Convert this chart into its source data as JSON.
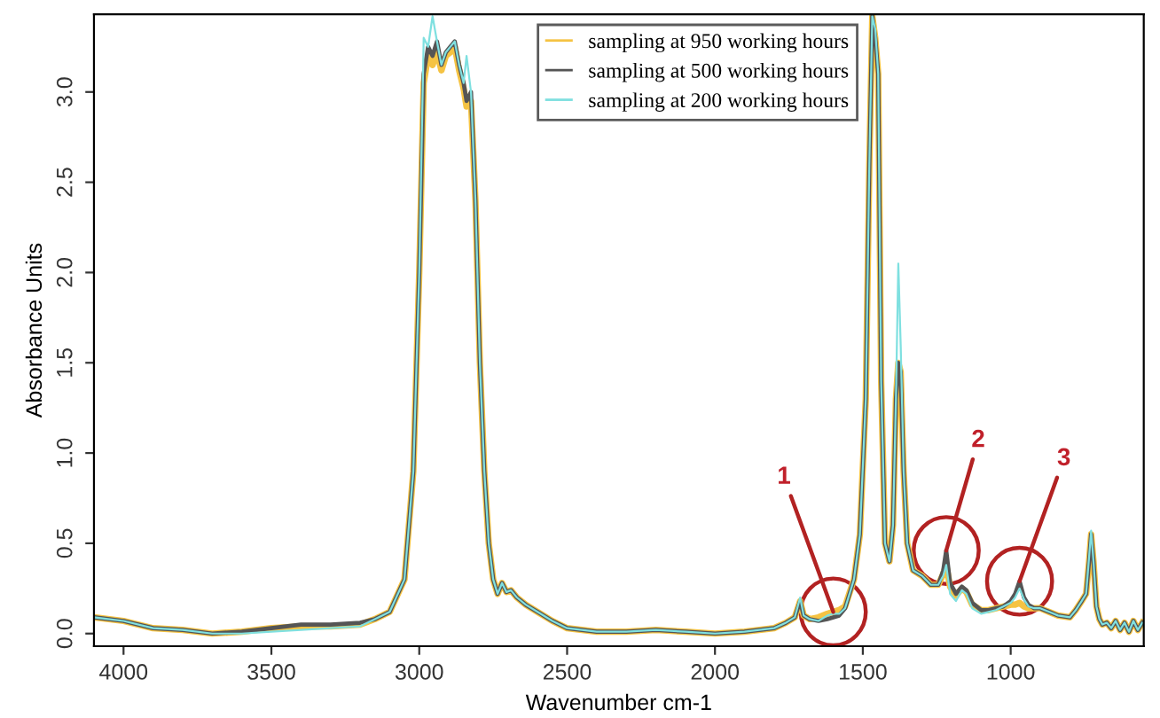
{
  "chart_data": {
    "type": "line",
    "xlabel": "Wavenumber cm-1",
    "ylabel": "Absorbance Units",
    "x": [
      4100,
      4000,
      3900,
      3800,
      3700,
      3600,
      3500,
      3400,
      3300,
      3200,
      3150,
      3100,
      3050,
      3020,
      3000,
      2985,
      2970,
      2955,
      2940,
      2925,
      2910,
      2895,
      2880,
      2865,
      2850,
      2840,
      2825,
      2810,
      2795,
      2780,
      2765,
      2750,
      2735,
      2720,
      2705,
      2690,
      2670,
      2640,
      2600,
      2550,
      2500,
      2400,
      2300,
      2200,
      2100,
      2000,
      1900,
      1800,
      1760,
      1730,
      1712,
      1700,
      1680,
      1650,
      1620,
      1600,
      1580,
      1560,
      1530,
      1510,
      1490,
      1478,
      1468,
      1458,
      1448,
      1438,
      1425,
      1410,
      1398,
      1388,
      1380,
      1372,
      1362,
      1350,
      1330,
      1300,
      1270,
      1245,
      1228,
      1218,
      1205,
      1185,
      1165,
      1150,
      1130,
      1100,
      1075,
      1050,
      1025,
      1000,
      985,
      970,
      955,
      940,
      920,
      900,
      870,
      840,
      800,
      780,
      760,
      745,
      735,
      728,
      720,
      710,
      700,
      690,
      675,
      660,
      645,
      630,
      615,
      600,
      585,
      570,
      555
    ],
    "series": [
      {
        "name": "sampling at 950 working hours",
        "color": "#f5c343",
        "values": [
          0.09,
          0.07,
          0.03,
          0.02,
          0.0,
          0.01,
          0.03,
          0.04,
          0.04,
          0.05,
          0.08,
          0.12,
          0.3,
          0.9,
          2.0,
          3.05,
          3.2,
          3.15,
          3.22,
          3.12,
          3.2,
          3.22,
          3.25,
          3.12,
          3.02,
          2.92,
          2.95,
          2.4,
          1.5,
          0.9,
          0.5,
          0.3,
          0.22,
          0.28,
          0.23,
          0.24,
          0.2,
          0.16,
          0.12,
          0.07,
          0.03,
          0.01,
          0.01,
          0.02,
          0.01,
          0.0,
          0.01,
          0.03,
          0.06,
          0.09,
          0.18,
          0.1,
          0.08,
          0.09,
          0.11,
          0.12,
          0.13,
          0.15,
          0.3,
          0.55,
          1.3,
          2.6,
          3.42,
          3.3,
          3.1,
          1.4,
          0.5,
          0.4,
          0.6,
          1.3,
          1.5,
          1.45,
          0.9,
          0.5,
          0.35,
          0.32,
          0.27,
          0.27,
          0.33,
          0.38,
          0.26,
          0.21,
          0.25,
          0.23,
          0.16,
          0.13,
          0.13,
          0.14,
          0.15,
          0.16,
          0.16,
          0.17,
          0.15,
          0.14,
          0.14,
          0.14,
          0.12,
          0.1,
          0.09,
          0.13,
          0.18,
          0.22,
          0.4,
          0.55,
          0.4,
          0.15,
          0.08,
          0.05,
          0.06,
          0.03,
          0.07,
          0.02,
          0.06,
          0.01,
          0.07,
          0.02,
          0.06
        ]
      },
      {
        "name": "sampling at 500 working hours",
        "color": "#555555",
        "values": [
          0.09,
          0.07,
          0.03,
          0.02,
          0.0,
          0.01,
          0.03,
          0.05,
          0.05,
          0.06,
          0.08,
          0.12,
          0.3,
          0.9,
          2.0,
          3.1,
          3.25,
          3.2,
          3.28,
          3.15,
          3.22,
          3.25,
          3.28,
          3.15,
          3.05,
          2.95,
          3.0,
          2.4,
          1.5,
          0.9,
          0.5,
          0.3,
          0.22,
          0.28,
          0.23,
          0.24,
          0.2,
          0.16,
          0.12,
          0.07,
          0.03,
          0.01,
          0.01,
          0.02,
          0.01,
          0.0,
          0.01,
          0.03,
          0.06,
          0.09,
          0.18,
          0.1,
          0.08,
          0.07,
          0.08,
          0.09,
          0.1,
          0.14,
          0.3,
          0.55,
          1.3,
          2.6,
          3.42,
          3.3,
          3.1,
          1.4,
          0.5,
          0.4,
          0.6,
          1.3,
          1.5,
          1.45,
          0.9,
          0.5,
          0.35,
          0.32,
          0.27,
          0.27,
          0.35,
          0.46,
          0.28,
          0.22,
          0.26,
          0.24,
          0.17,
          0.13,
          0.13,
          0.14,
          0.15,
          0.18,
          0.22,
          0.29,
          0.2,
          0.16,
          0.14,
          0.14,
          0.12,
          0.1,
          0.09,
          0.13,
          0.18,
          0.22,
          0.4,
          0.55,
          0.4,
          0.15,
          0.08,
          0.05,
          0.06,
          0.03,
          0.07,
          0.02,
          0.06,
          0.01,
          0.07,
          0.02,
          0.06
        ]
      },
      {
        "name": "sampling at 200 working hours",
        "color": "#7fe0e0",
        "values": [
          0.09,
          0.07,
          0.03,
          0.02,
          0.0,
          0.0,
          0.01,
          0.02,
          0.03,
          0.04,
          0.08,
          0.12,
          0.3,
          0.9,
          2.0,
          3.3,
          3.25,
          3.42,
          3.28,
          3.15,
          3.22,
          3.25,
          3.28,
          3.15,
          3.05,
          3.2,
          3.0,
          2.4,
          1.5,
          0.9,
          0.5,
          0.3,
          0.22,
          0.28,
          0.23,
          0.24,
          0.2,
          0.16,
          0.12,
          0.07,
          0.03,
          0.01,
          0.01,
          0.02,
          0.01,
          0.0,
          0.01,
          0.03,
          0.06,
          0.09,
          0.2,
          0.1,
          0.08,
          0.07,
          0.1,
          0.11,
          0.11,
          0.14,
          0.3,
          0.55,
          1.3,
          2.6,
          3.42,
          3.35,
          3.1,
          1.4,
          0.5,
          0.4,
          0.6,
          1.3,
          2.05,
          1.6,
          0.9,
          0.5,
          0.35,
          0.32,
          0.27,
          0.27,
          0.32,
          0.38,
          0.22,
          0.18,
          0.24,
          0.22,
          0.14,
          0.11,
          0.12,
          0.13,
          0.15,
          0.17,
          0.2,
          0.25,
          0.19,
          0.15,
          0.14,
          0.14,
          0.12,
          0.1,
          0.09,
          0.13,
          0.18,
          0.22,
          0.42,
          0.57,
          0.4,
          0.15,
          0.08,
          0.05,
          0.06,
          0.03,
          0.07,
          0.02,
          0.06,
          0.01,
          0.07,
          0.02,
          0.06
        ]
      }
    ],
    "xlim": [
      4100,
      550
    ],
    "ylim": [
      -0.07,
      3.43
    ],
    "xticks": [
      4000,
      3500,
      3000,
      2500,
      2000,
      1500,
      1000
    ],
    "yticks": [
      {
        "value": 0,
        "label": "0.0"
      },
      0.5,
      {
        "value": 1,
        "label": "1.0"
      },
      1.5,
      {
        "value": 2,
        "label": "2.0"
      },
      2.5,
      {
        "value": 3,
        "label": "3.0"
      }
    ],
    "annotations": [
      {
        "text": "1",
        "x": 1600,
        "y": 0.12
      },
      {
        "text": "2",
        "x": 1218,
        "y": 0.46
      },
      {
        "text": "3",
        "x": 970,
        "y": 0.29
      }
    ],
    "legend": "top",
    "grid": false
  }
}
